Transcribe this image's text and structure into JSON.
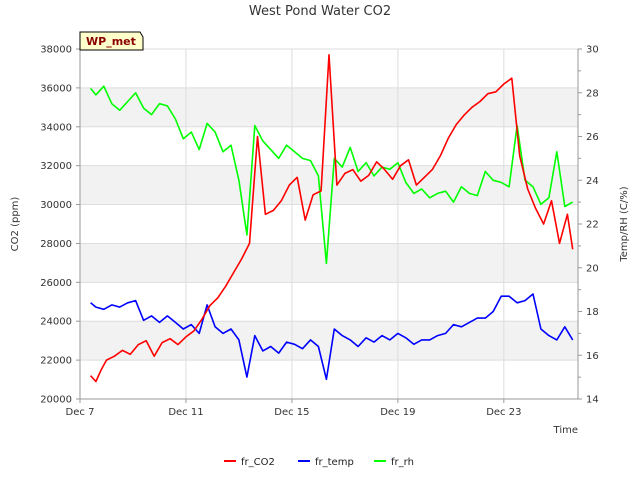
{
  "chart_data": {
    "type": "line",
    "title": "West Pond Water CO2",
    "station_label": "WP_met",
    "xlabel": "Time",
    "ylabel": "CO2 (ppm)",
    "y2label": "Temp/RH (C/%)",
    "x_range": [
      7.0,
      25.8
    ],
    "ylim": [
      20000,
      38000
    ],
    "y2lim": [
      14,
      30
    ],
    "x_ticks": [
      {
        "v": 7,
        "label": "Dec 7"
      },
      {
        "v": 11,
        "label": "Dec 11"
      },
      {
        "v": 15,
        "label": "Dec 15"
      },
      {
        "v": 19,
        "label": "Dec 19"
      },
      {
        "v": 23,
        "label": "Dec 23"
      }
    ],
    "y_ticks": [
      20000,
      22000,
      24000,
      26000,
      28000,
      30000,
      32000,
      34000,
      36000,
      38000
    ],
    "y_tick_labels": [
      "20000",
      "22000",
      "24000",
      "26000",
      "28000",
      "30000",
      "32000",
      "34000",
      "36000",
      "38000"
    ],
    "y2_ticks": [
      14,
      16,
      18,
      20,
      22,
      24,
      26,
      28,
      30
    ],
    "y2_tick_labels": [
      "14",
      "16",
      "18",
      "20",
      "22",
      "24",
      "26",
      "28",
      "30"
    ],
    "legend_position": "bottom-center",
    "series": [
      {
        "name": "fr_CO2",
        "color": "#ff0000",
        "axis": "left",
        "x": [
          7.4,
          7.6,
          7.8,
          8.0,
          8.3,
          8.6,
          8.9,
          9.2,
          9.5,
          9.8,
          10.1,
          10.4,
          10.7,
          11.0,
          11.3,
          11.6,
          11.9,
          12.2,
          12.5,
          12.8,
          13.1,
          13.4,
          13.7,
          14.0,
          14.3,
          14.6,
          14.9,
          15.2,
          15.5,
          15.8,
          16.1,
          16.4,
          16.7,
          17.0,
          17.3,
          17.6,
          17.9,
          18.2,
          18.5,
          18.8,
          19.1,
          19.4,
          19.7,
          20.0,
          20.3,
          20.6,
          20.9,
          21.2,
          21.5,
          21.8,
          22.1,
          22.4,
          22.7,
          23.0,
          23.3,
          23.6,
          23.9,
          24.2,
          24.5,
          24.8,
          25.1,
          25.4,
          25.6
        ],
        "y": [
          21200,
          20900,
          21500,
          22000,
          22200,
          22500,
          22300,
          22800,
          23000,
          22200,
          22900,
          23100,
          22800,
          23200,
          23500,
          24100,
          24800,
          25200,
          25800,
          26500,
          27200,
          28000,
          33500,
          29500,
          29700,
          30200,
          31000,
          31400,
          29200,
          30500,
          30700,
          37700,
          31000,
          31600,
          31800,
          31200,
          31500,
          32200,
          31800,
          31300,
          32000,
          32300,
          31000,
          31400,
          31800,
          32500,
          33400,
          34100,
          34600,
          35000,
          35300,
          35700,
          35800,
          36200,
          36500,
          32500,
          30800,
          29800,
          29000,
          30200,
          28000,
          29500,
          27700
        ]
      },
      {
        "name": "fr_temp",
        "color": "#0000ff",
        "axis": "right",
        "x": [
          7.4,
          7.6,
          7.9,
          8.2,
          8.5,
          8.8,
          9.1,
          9.4,
          9.7,
          10.0,
          10.3,
          10.6,
          10.9,
          11.2,
          11.5,
          11.8,
          12.1,
          12.4,
          12.7,
          13.0,
          13.3,
          13.6,
          13.9,
          14.2,
          14.5,
          14.8,
          15.1,
          15.4,
          15.7,
          16.0,
          16.3,
          16.6,
          16.9,
          17.2,
          17.5,
          17.8,
          18.1,
          18.4,
          18.7,
          19.0,
          19.3,
          19.6,
          19.9,
          20.2,
          20.5,
          20.8,
          21.1,
          21.4,
          21.7,
          22.0,
          22.3,
          22.6,
          22.9,
          23.2,
          23.5,
          23.8,
          24.1,
          24.4,
          24.7,
          25.0,
          25.3,
          25.6
        ],
        "y": [
          18.4,
          18.2,
          18.1,
          18.3,
          18.2,
          18.4,
          18.5,
          17.6,
          17.8,
          17.5,
          17.8,
          17.5,
          17.2,
          17.4,
          17.0,
          18.3,
          17.3,
          17.0,
          17.2,
          16.7,
          15.0,
          16.9,
          16.2,
          16.4,
          16.1,
          16.6,
          16.5,
          16.3,
          16.7,
          16.4,
          14.9,
          17.2,
          16.9,
          16.7,
          16.4,
          16.8,
          16.6,
          16.9,
          16.7,
          17.0,
          16.8,
          16.5,
          16.7,
          16.7,
          16.9,
          17.0,
          17.4,
          17.3,
          17.5,
          17.7,
          17.7,
          18.0,
          18.7,
          18.7,
          18.4,
          18.5,
          18.8,
          17.2,
          16.9,
          16.7,
          17.3,
          16.7
        ]
      },
      {
        "name": "fr_rh",
        "color": "#00ff00",
        "axis": "right",
        "x": [
          7.4,
          7.6,
          7.9,
          8.2,
          8.5,
          8.8,
          9.1,
          9.4,
          9.7,
          10.0,
          10.3,
          10.6,
          10.9,
          11.2,
          11.5,
          11.8,
          12.1,
          12.4,
          12.7,
          13.0,
          13.3,
          13.6,
          13.9,
          14.2,
          14.5,
          14.8,
          15.1,
          15.4,
          15.7,
          16.0,
          16.3,
          16.6,
          16.9,
          17.2,
          17.5,
          17.8,
          18.1,
          18.4,
          18.7,
          19.0,
          19.3,
          19.6,
          19.9,
          20.2,
          20.5,
          20.8,
          21.1,
          21.4,
          21.7,
          22.0,
          22.3,
          22.6,
          22.9,
          23.2,
          23.5,
          23.8,
          24.1,
          24.4,
          24.7,
          25.0,
          25.3,
          25.6
        ],
        "y": [
          28.2,
          27.9,
          28.3,
          27.5,
          27.2,
          27.6,
          28.0,
          27.3,
          27.0,
          27.5,
          27.4,
          26.8,
          25.9,
          26.2,
          25.4,
          26.6,
          26.2,
          25.3,
          25.6,
          24.0,
          21.5,
          26.5,
          25.8,
          25.4,
          25.0,
          25.6,
          25.3,
          25.0,
          24.9,
          24.2,
          20.2,
          25.0,
          24.6,
          25.5,
          24.4,
          24.8,
          24.2,
          24.6,
          24.5,
          24.8,
          23.9,
          23.4,
          23.6,
          23.2,
          23.4,
          23.5,
          23.0,
          23.7,
          23.4,
          23.3,
          24.4,
          24.0,
          23.9,
          23.7,
          26.5,
          24.0,
          23.7,
          22.9,
          23.2,
          25.3,
          22.8,
          23.0
        ]
      }
    ]
  }
}
